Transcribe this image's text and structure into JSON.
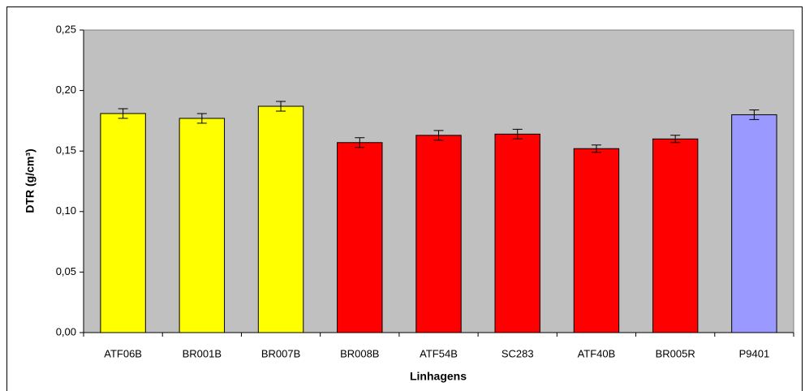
{
  "chart_data": {
    "type": "bar",
    "categories": [
      "ATF06B",
      "BR001B",
      "BR007B",
      "BR008B",
      "ATF54B",
      "SC283",
      "ATF40B",
      "BR005R",
      "P9401"
    ],
    "values": [
      0.181,
      0.177,
      0.187,
      0.157,
      0.163,
      0.164,
      0.152,
      0.16,
      0.18
    ],
    "errors": [
      0.004,
      0.004,
      0.004,
      0.004,
      0.004,
      0.004,
      0.003,
      0.003,
      0.004
    ],
    "colors": [
      "#ffff00",
      "#ffff00",
      "#ffff00",
      "#ff0000",
      "#ff0000",
      "#ff0000",
      "#ff0000",
      "#ff0000",
      "#9999ff"
    ],
    "ylim": [
      0,
      0.25
    ],
    "yticks": [
      {
        "value": 0,
        "label": "0,00"
      },
      {
        "value": 0.05,
        "label": "0,05"
      },
      {
        "value": 0.1,
        "label": "0,10"
      },
      {
        "value": 0.15,
        "label": "0,15"
      },
      {
        "value": 0.2,
        "label": "0,20"
      },
      {
        "value": 0.25,
        "label": "0,25"
      }
    ],
    "y_label": "DTR (g/cm³)",
    "x_label": "Linhagens",
    "plot_background": "#c0c0c0"
  }
}
